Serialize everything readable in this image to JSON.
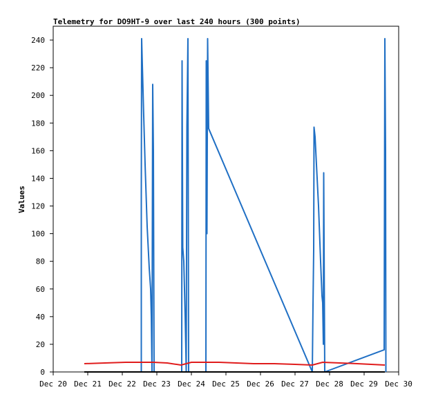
{
  "chart_data": {
    "type": "line",
    "title": "Telemetry for DO9HT-9 over last 240 hours (300 points)",
    "xlabel": "",
    "ylabel": "Values",
    "ylim": [
      0,
      250
    ],
    "yticks": [
      0,
      20,
      40,
      60,
      80,
      100,
      120,
      140,
      160,
      180,
      200,
      220,
      240
    ],
    "xlim": [
      20,
      30
    ],
    "xticks": [
      {
        "v": 20,
        "label": "Dec 20"
      },
      {
        "v": 21,
        "label": "Dec 21"
      },
      {
        "v": 22,
        "label": "Dec 22"
      },
      {
        "v": 23,
        "label": "Dec 23"
      },
      {
        "v": 24,
        "label": "Dec 24"
      },
      {
        "v": 25,
        "label": "Dec 25"
      },
      {
        "v": 26,
        "label": "Dec 26"
      },
      {
        "v": 27,
        "label": "Dec 27"
      },
      {
        "v": 28,
        "label": "Dec 28"
      },
      {
        "v": 29,
        "label": "Dec 29"
      },
      {
        "v": 30,
        "label": "Dec 30"
      }
    ],
    "grid": false,
    "legend": "none",
    "series": [
      {
        "color": "#1f6fc4",
        "points": [
          [
            22.55,
            0
          ],
          [
            22.55,
            128
          ],
          [
            22.56,
            241
          ],
          [
            22.58,
            222
          ],
          [
            22.62,
            185
          ],
          [
            22.66,
            150
          ],
          [
            22.72,
            105
          ],
          [
            22.78,
            75
          ],
          [
            22.82,
            60
          ],
          [
            22.84,
            40
          ],
          [
            22.86,
            0
          ],
          [
            22.88,
            208
          ],
          [
            22.9,
            160
          ],
          [
            22.92,
            0
          ],
          [
            23.72,
            0
          ],
          [
            23.73,
            225
          ],
          [
            23.75,
            90
          ],
          [
            23.78,
            80
          ],
          [
            23.82,
            40
          ],
          [
            23.84,
            15
          ],
          [
            23.85,
            0
          ],
          [
            23.87,
            177
          ],
          [
            23.9,
            241
          ],
          [
            23.92,
            0
          ],
          [
            24.42,
            0
          ],
          [
            24.43,
            225
          ],
          [
            24.45,
            100
          ],
          [
            24.47,
            241
          ],
          [
            24.5,
            176
          ],
          [
            27.5,
            0
          ],
          [
            27.52,
            48
          ],
          [
            27.54,
            88
          ],
          [
            27.55,
            177
          ],
          [
            27.58,
            170
          ],
          [
            27.62,
            150
          ],
          [
            27.68,
            120
          ],
          [
            27.74,
            80
          ],
          [
            27.78,
            55
          ],
          [
            27.8,
            50
          ],
          [
            27.82,
            20
          ],
          [
            27.83,
            144
          ],
          [
            27.86,
            0
          ],
          [
            29.58,
            16
          ],
          [
            29.6,
            241
          ],
          [
            29.62,
            160
          ],
          [
            29.63,
            0
          ]
        ]
      },
      {
        "color": "#e01b1b",
        "points": [
          [
            20.9,
            6
          ],
          [
            21.5,
            6.5
          ],
          [
            22.1,
            7
          ],
          [
            22.6,
            7
          ],
          [
            22.9,
            7
          ],
          [
            23.3,
            6.5
          ],
          [
            23.7,
            5
          ],
          [
            24.0,
            7
          ],
          [
            24.4,
            7
          ],
          [
            24.8,
            7
          ],
          [
            25.3,
            6.5
          ],
          [
            25.8,
            6
          ],
          [
            26.4,
            6
          ],
          [
            27.0,
            5.5
          ],
          [
            27.5,
            5
          ],
          [
            27.8,
            7
          ],
          [
            28.3,
            6.5
          ],
          [
            28.8,
            6
          ],
          [
            29.6,
            5
          ]
        ]
      },
      {
        "color": "#000000",
        "points": [
          [
            20.9,
            0
          ],
          [
            29.6,
            0
          ]
        ]
      }
    ]
  }
}
